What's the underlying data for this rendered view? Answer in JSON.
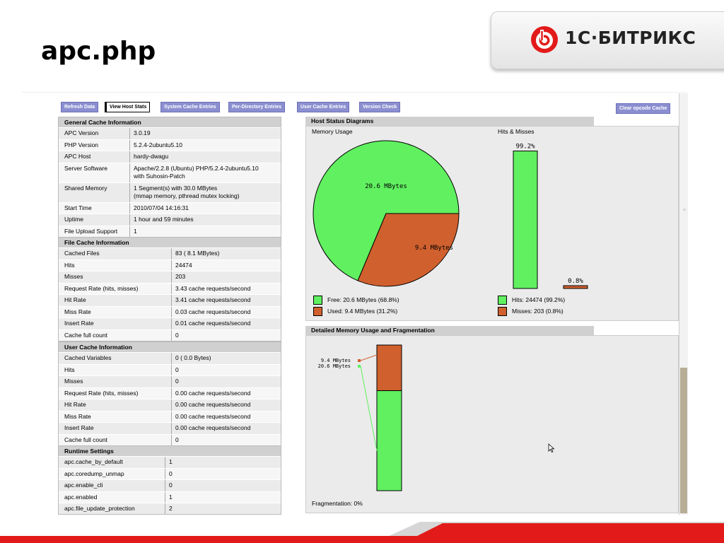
{
  "slide": {
    "title": "apc.php",
    "brand_text": "1С·БИТРИКС"
  },
  "colors": {
    "accent_red": "#e21a1a",
    "tab_blue": "#8b8fd0",
    "free_green": "#60f060",
    "used_orange": "#d0602e"
  },
  "toolbar": {
    "tabs": [
      "Refresh Data",
      "View Host Stats",
      "System Cache Entries",
      "Per-Directory Entries",
      "User Cache Entries",
      "Version Check"
    ],
    "active_tab": "View Host Stats",
    "clear_button": "Clear opcode Cache"
  },
  "general": {
    "title": "General Cache Information",
    "rows": [
      {
        "k": "APC Version",
        "v": "3.0.19"
      },
      {
        "k": "PHP Version",
        "v": "5.2.4-2ubuntu5.10"
      },
      {
        "k": "APC Host",
        "v": "hardy-dwagu"
      },
      {
        "k": "Server Software",
        "v": "Apache/2.2.8 (Ubuntu) PHP/5.2.4-2ubuntu5.10",
        "v2": "with Suhosin-Patch"
      },
      {
        "k": "Shared Memory",
        "v": "1 Segment(s) with 30.0 MBytes",
        "v2": "(mmap memory, pthread mutex locking)"
      },
      {
        "k": "Start Time",
        "v": "2010/07/04 14:16:31"
      },
      {
        "k": "Uptime",
        "v": "1 hour and 59 minutes"
      },
      {
        "k": "File Upload Support",
        "v": "1"
      }
    ]
  },
  "file_cache": {
    "title": "File Cache Information",
    "rows": [
      {
        "k": "Cached Files",
        "v": "83 ( 8.1 MBytes)"
      },
      {
        "k": "Hits",
        "v": "24474"
      },
      {
        "k": "Misses",
        "v": "203"
      },
      {
        "k": "Request Rate (hits, misses)",
        "v": "3.43 cache requests/second"
      },
      {
        "k": "Hit Rate",
        "v": "3.41 cache requests/second"
      },
      {
        "k": "Miss Rate",
        "v": "0.03 cache requests/second"
      },
      {
        "k": "Insert Rate",
        "v": "0.01 cache requests/second"
      },
      {
        "k": "Cache full count",
        "v": "0"
      }
    ]
  },
  "user_cache": {
    "title": "User Cache Information",
    "rows": [
      {
        "k": "Cached Variables",
        "v": "0 ( 0.0 Bytes)"
      },
      {
        "k": "Hits",
        "v": "0"
      },
      {
        "k": "Misses",
        "v": "0"
      },
      {
        "k": "Request Rate (hits, misses)",
        "v": "0.00 cache requests/second"
      },
      {
        "k": "Hit Rate",
        "v": "0.00 cache requests/second"
      },
      {
        "k": "Miss Rate",
        "v": "0.00 cache requests/second"
      },
      {
        "k": "Insert Rate",
        "v": "0.00 cache requests/second"
      },
      {
        "k": "Cache full count",
        "v": "0"
      }
    ]
  },
  "runtime": {
    "title": "Runtime Settings",
    "rows": [
      {
        "k": "apc.cache_by_default",
        "v": "1"
      },
      {
        "k": "apc.coredump_unmap",
        "v": "0"
      },
      {
        "k": "apc.enable_cli",
        "v": "0"
      },
      {
        "k": "apc.enabled",
        "v": "1"
      },
      {
        "k": "apc.file_update_protection",
        "v": "2"
      }
    ]
  },
  "diagrams": {
    "title": "Host Status Diagrams",
    "memory_title": "Memory Usage",
    "hits_title": "Hits & Misses",
    "free_legend": "Free: 20.6 MBytes (68.8%)",
    "used_legend": "Used: 9.4 MBytes (31.2%)",
    "hits_legend": "Hits: 24474 (99.2%)",
    "misses_legend": "Misses: 203 (0.8%)",
    "detail_title": "Detailed Memory Usage and Fragmentation",
    "fragmentation": "Fragmentation: 0%"
  },
  "chart_data": [
    {
      "type": "pie",
      "labels": [
        "Free",
        "Used"
      ],
      "values": [
        20.6,
        9.4
      ],
      "percent": [
        68.8,
        31.2
      ],
      "data_labels": [
        "20.6 MBytes",
        "9.4 MBytes"
      ],
      "colors": [
        "#60f060",
        "#d0602e"
      ]
    },
    {
      "type": "bar",
      "categories": [
        "Hits",
        "Misses"
      ],
      "values": [
        24474,
        203
      ],
      "percent": [
        99.2,
        0.8
      ],
      "data_labels": [
        "99.2%",
        "0.8%"
      ],
      "colors": [
        "#60f060",
        "#d0602e"
      ]
    },
    {
      "type": "bar",
      "categories": [
        "Used",
        "Free"
      ],
      "values": [
        9.4,
        20.6
      ],
      "data_labels": [
        "9.4 MBytes",
        "20.6 MBytes"
      ],
      "colors": [
        "#d0602e",
        "#60f060"
      ]
    }
  ]
}
